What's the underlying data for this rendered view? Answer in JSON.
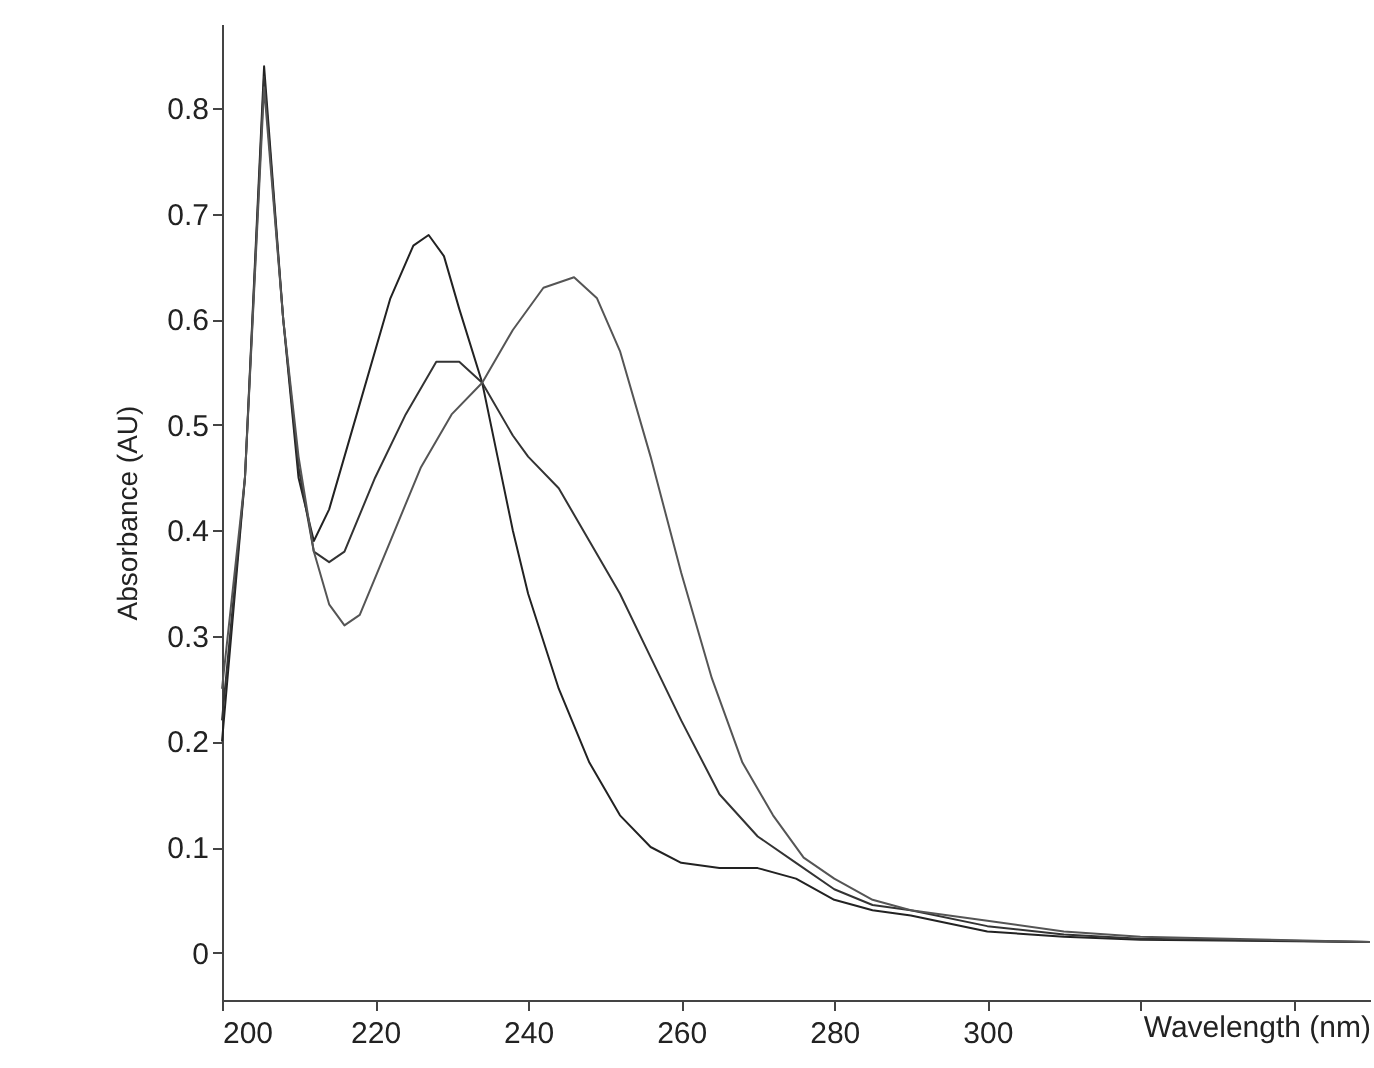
{
  "chart_data": {
    "type": "line",
    "xlabel": "Wavelength (nm)",
    "ylabel": "Absorbance (AU)",
    "xlim": [
      200,
      350
    ],
    "xticks": [
      200,
      220,
      240,
      260,
      280,
      300,
      {
        "value": 320,
        "label": null
      },
      {
        "value": 340,
        "label": null
      }
    ],
    "ylim": [
      -0.045,
      0.88
    ],
    "yticks": [
      0,
      0.1,
      0.2,
      0.3,
      0.4,
      0.5,
      0.6,
      0.7,
      0.8
    ],
    "grid": false,
    "marker": "none",
    "line_style": "solid",
    "series": [
      {
        "color": "#222222",
        "x": [
          200,
          203,
          205.5,
          208,
          210,
          212,
          214,
          218,
          222,
          225,
          227,
          229,
          231,
          234,
          236,
          238,
          240,
          244,
          248,
          252,
          256,
          260,
          265,
          270,
          275,
          280,
          285,
          290,
          300,
          310,
          320,
          350
        ],
        "values": [
          0.2,
          0.45,
          0.84,
          0.6,
          0.45,
          0.39,
          0.42,
          0.52,
          0.62,
          0.67,
          0.68,
          0.66,
          0.61,
          0.54,
          0.47,
          0.4,
          0.34,
          0.25,
          0.18,
          0.13,
          0.1,
          0.085,
          0.08,
          0.08,
          0.07,
          0.05,
          0.04,
          0.035,
          0.02,
          0.015,
          0.012,
          0.01
        ]
      },
      {
        "color": "#333333",
        "x": [
          200,
          203,
          205.5,
          208,
          210,
          212,
          214,
          216,
          220,
          224,
          228,
          231,
          234,
          238,
          240,
          244,
          248,
          252,
          256,
          260,
          265,
          270,
          275,
          280,
          285,
          290,
          300,
          310,
          320,
          350
        ],
        "values": [
          0.22,
          0.45,
          0.83,
          0.6,
          0.46,
          0.38,
          0.37,
          0.38,
          0.45,
          0.51,
          0.56,
          0.56,
          0.54,
          0.49,
          0.47,
          0.44,
          0.39,
          0.34,
          0.28,
          0.22,
          0.15,
          0.11,
          0.085,
          0.06,
          0.045,
          0.04,
          0.025,
          0.017,
          0.013,
          0.01
        ]
      },
      {
        "color": "#555555",
        "x": [
          200,
          203,
          205.5,
          208,
          210,
          212,
          214,
          216,
          218,
          222,
          226,
          230,
          234,
          238,
          242,
          246,
          249,
          252,
          256,
          260,
          264,
          268,
          272,
          276,
          280,
          285,
          290,
          295,
          300,
          310,
          320,
          350
        ],
        "values": [
          0.25,
          0.45,
          0.82,
          0.6,
          0.47,
          0.38,
          0.33,
          0.31,
          0.32,
          0.39,
          0.46,
          0.51,
          0.54,
          0.59,
          0.63,
          0.64,
          0.62,
          0.57,
          0.47,
          0.36,
          0.26,
          0.18,
          0.13,
          0.09,
          0.07,
          0.05,
          0.04,
          0.035,
          0.03,
          0.02,
          0.015,
          0.01
        ]
      }
    ]
  }
}
